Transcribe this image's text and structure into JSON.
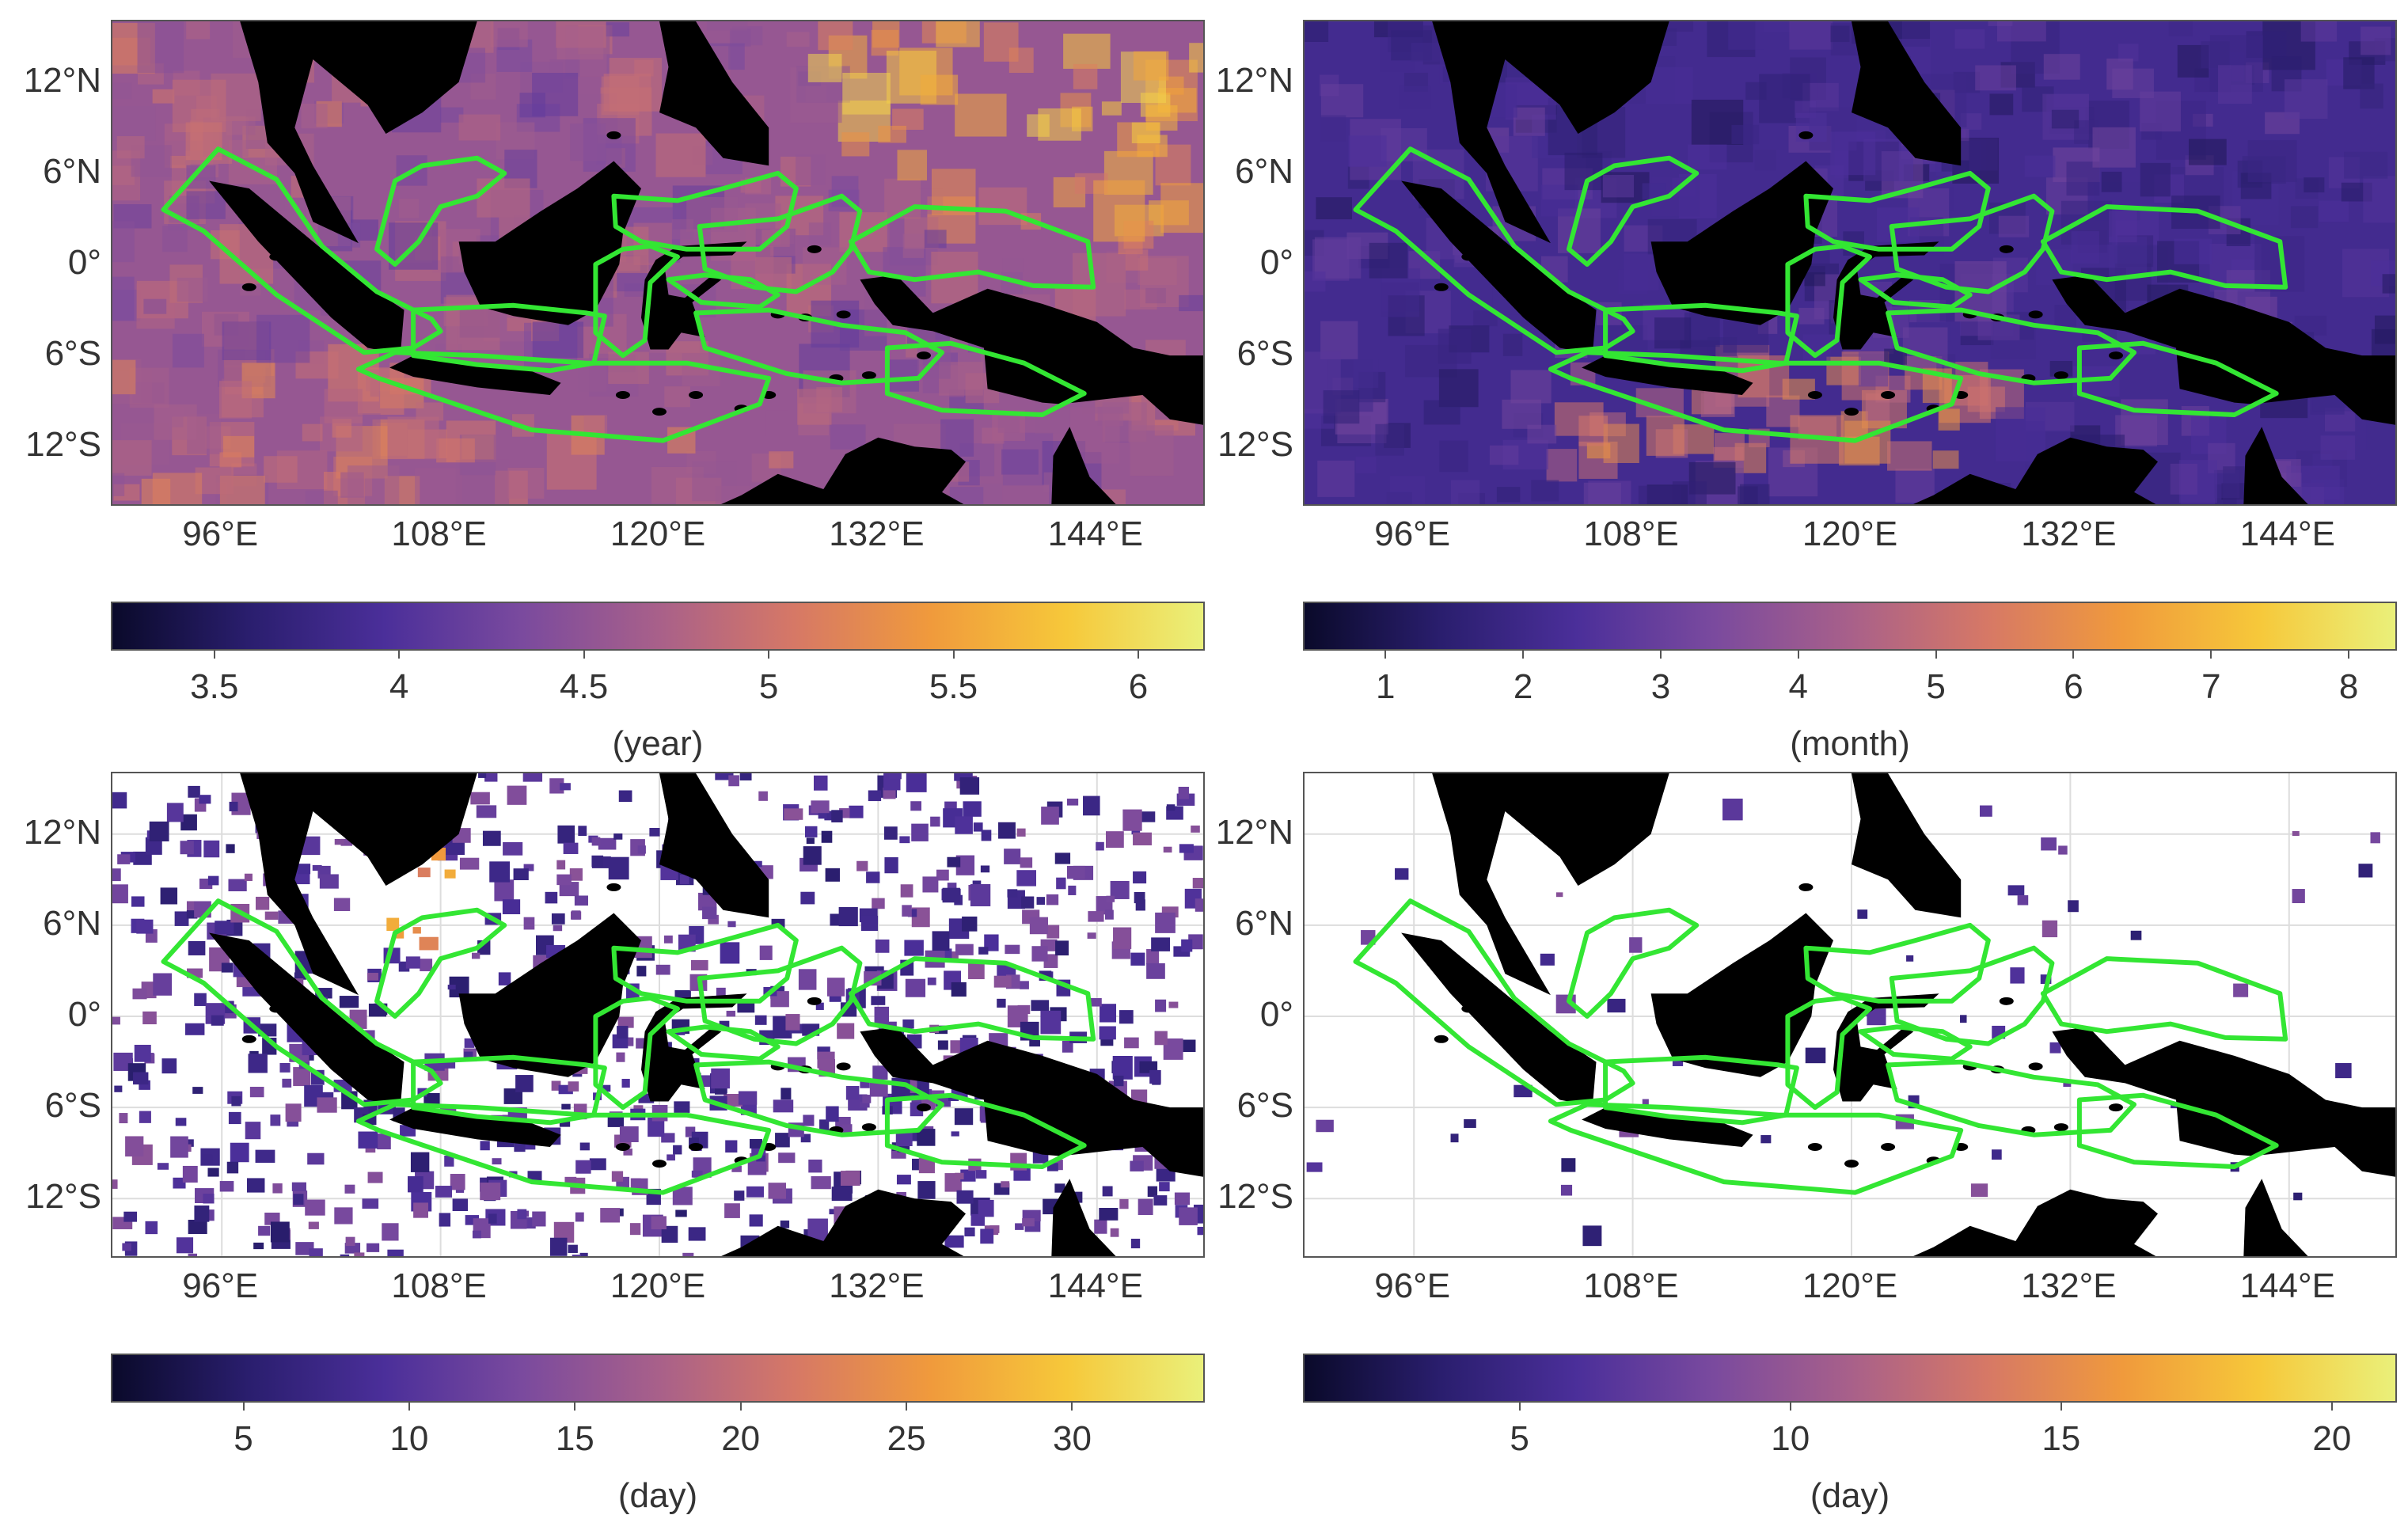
{
  "panels": [
    {
      "name": "top-left",
      "colorbar": {
        "ticks": [
          "3.5",
          "4",
          "4.5",
          "5",
          "5.5",
          "6"
        ],
        "tick_values": [
          3.5,
          4,
          4.5,
          5,
          5.5,
          6
        ],
        "range": [
          3.22,
          6.18
        ],
        "unit": "(year)"
      },
      "background_level": 0.45,
      "masked": false
    },
    {
      "name": "top-right",
      "colorbar": {
        "ticks": [
          "1",
          "2",
          "3",
          "4",
          "5",
          "6",
          "7",
          "8"
        ],
        "tick_values": [
          1,
          2,
          3,
          4,
          5,
          6,
          7,
          8
        ],
        "range": [
          0.4,
          8.35
        ],
        "unit": "(month)"
      },
      "background_level": 0.22,
      "masked": false
    },
    {
      "name": "bottom-left",
      "colorbar": {
        "ticks": [
          "5",
          "10",
          "15",
          "20",
          "25",
          "30"
        ],
        "tick_values": [
          5,
          10,
          15,
          20,
          25,
          30
        ],
        "range": [
          1,
          34
        ],
        "unit": "(day)"
      },
      "background_level": 0.15,
      "masked": true
    },
    {
      "name": "bottom-right",
      "colorbar": {
        "ticks": [
          "5",
          "10",
          "15",
          "20"
        ],
        "tick_values": [
          5,
          10,
          15,
          20
        ],
        "range": [
          1,
          21.2
        ],
        "unit": "(day)"
      },
      "background_level": 0.1,
      "masked": true
    }
  ],
  "lat_ticks": [
    "12°N",
    "6°N",
    "0°",
    "6°S",
    "12°S"
  ],
  "lat_values": [
    12,
    6,
    0,
    -6,
    -12
  ],
  "lon_ticks": [
    "96°E",
    "108°E",
    "120°E",
    "132°E",
    "144°E"
  ],
  "lon_values": [
    96,
    108,
    120,
    132,
    144
  ],
  "extent": {
    "lon": [
      90,
      150
    ],
    "lat": [
      -16,
      16
    ]
  },
  "colors": {
    "land": "#000000",
    "boundary": "#33e633",
    "colormap": [
      "#0a0a2a",
      "#2a1e6e",
      "#4b2f9a",
      "#7a4a9e",
      "#a8608a",
      "#d67866",
      "#f09a3c",
      "#f6c83a",
      "#eaf07a"
    ]
  }
}
